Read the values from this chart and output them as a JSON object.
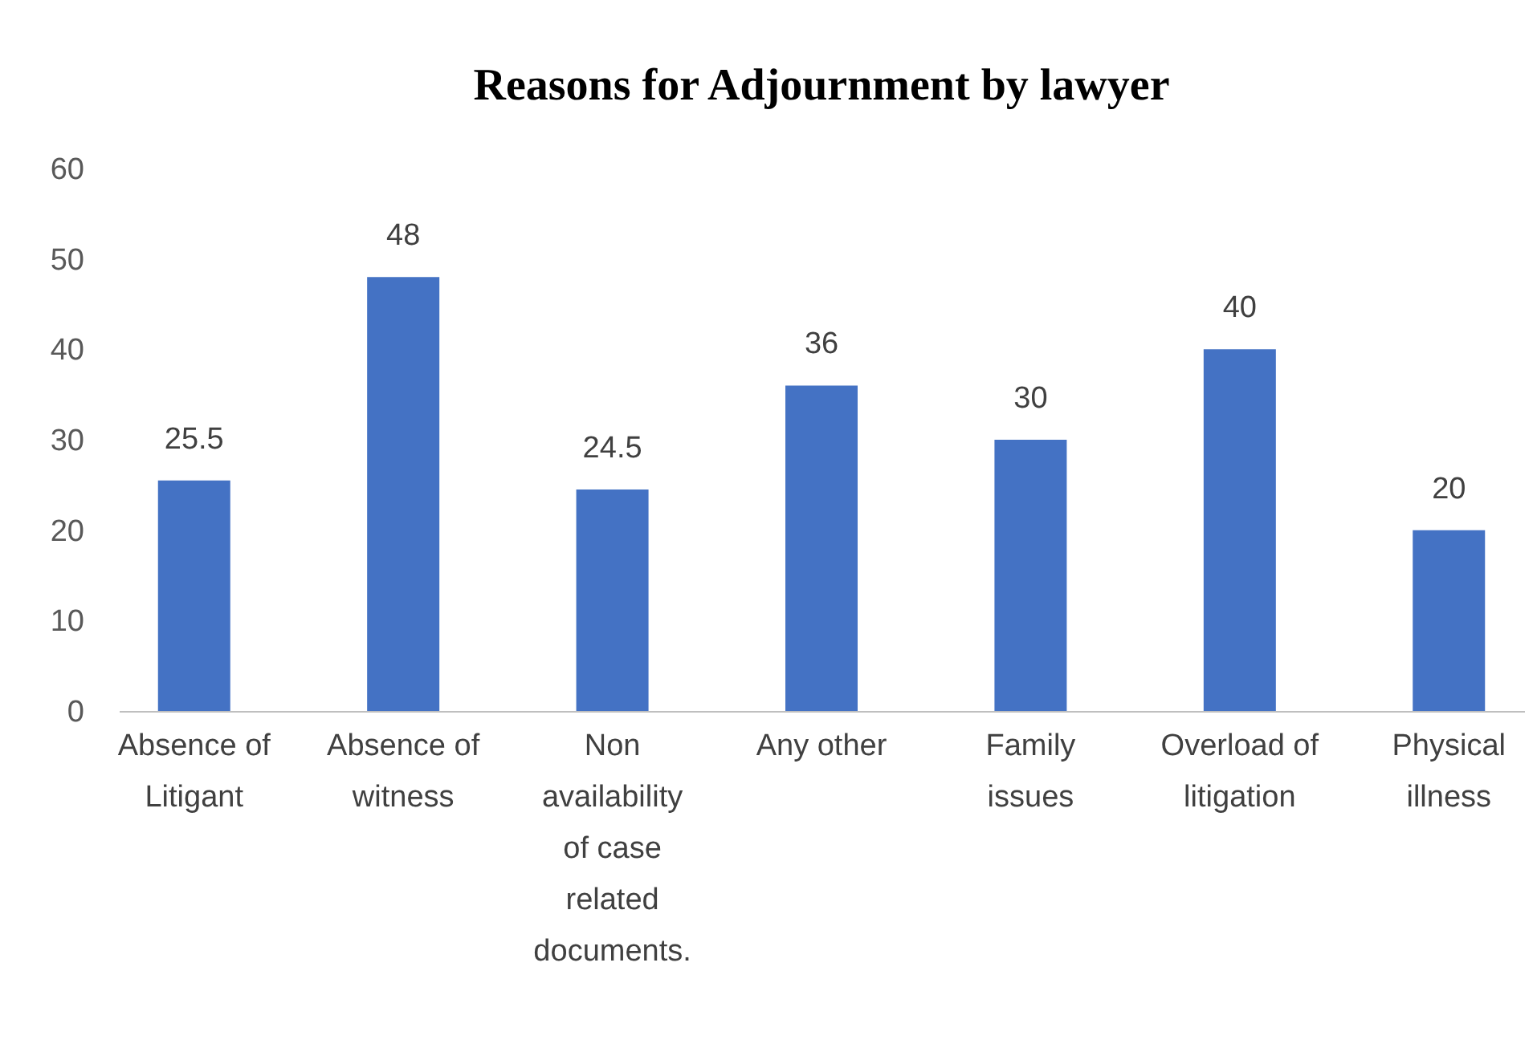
{
  "chart_data": {
    "type": "bar",
    "title": "Reasons for Adjournment by lawyer",
    "categories": [
      "Absence of Litigant",
      "Absence of witness",
      "Non availability of case related documents.",
      "Any other",
      "Family issues",
      "Overload of litigation",
      "Physical illness"
    ],
    "values": [
      25.5,
      48,
      24.5,
      36,
      30,
      40,
      20
    ],
    "color": "#4472c4",
    "ylim": [
      0,
      60
    ],
    "yticks": [
      0,
      10,
      20,
      30,
      40,
      50,
      60
    ],
    "data_labels": true,
    "grid": false
  }
}
